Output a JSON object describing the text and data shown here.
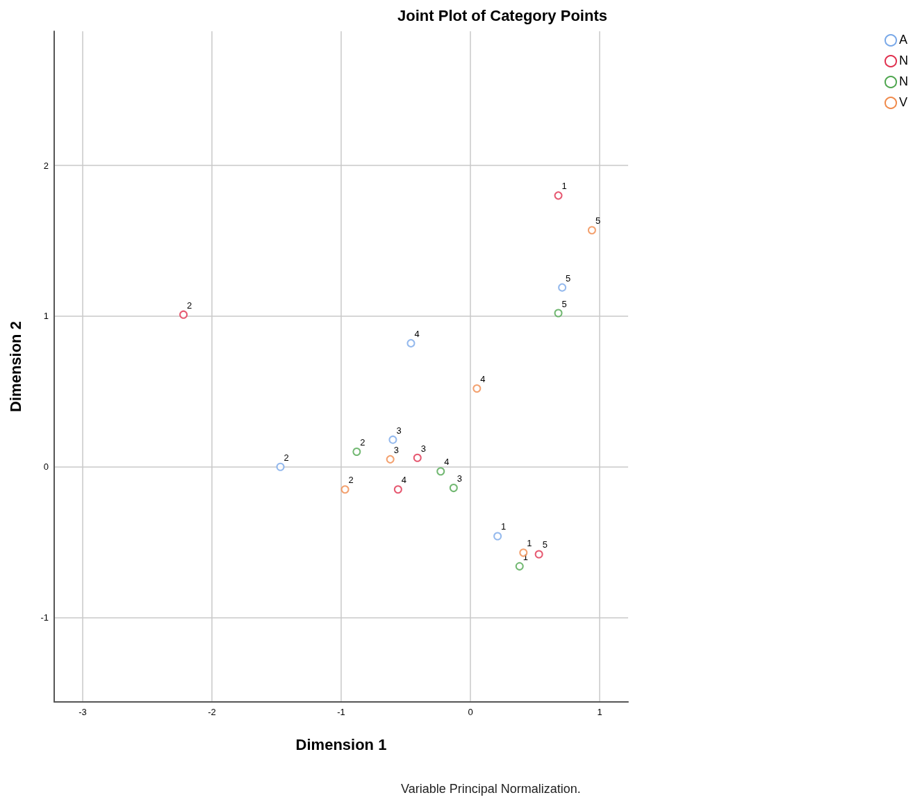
{
  "chart_data": {
    "type": "scatter",
    "title": "Joint Plot of Category Points",
    "xlabel": "Dimension 1",
    "ylabel": "Dimension 2",
    "annotations": [
      "Variable Principal Normalization.",
      {
        "text": "1",
        "x": 0.21,
        "y": -0.46
      },
      {
        "text": "2",
        "x": -1.47,
        "y": 0.0
      },
      {
        "text": "3",
        "x": -0.6,
        "y": 0.18
      },
      {
        "text": "4",
        "x": -0.46,
        "y": 0.82
      },
      {
        "text": "5",
        "x": 0.71,
        "y": 1.19
      },
      {
        "text": "1",
        "x": 0.68,
        "y": 1.8
      },
      {
        "text": "2",
        "x": -2.22,
        "y": 1.01
      },
      {
        "text": "3",
        "x": -0.41,
        "y": 0.06
      },
      {
        "text": "4",
        "x": -0.56,
        "y": -0.15
      },
      {
        "text": "5",
        "x": 0.53,
        "y": -0.58
      },
      {
        "text": "1",
        "x": 0.38,
        "y": -0.66
      },
      {
        "text": "2",
        "x": -0.88,
        "y": 0.1
      },
      {
        "text": "3",
        "x": -0.13,
        "y": -0.14
      },
      {
        "text": "4",
        "x": -0.23,
        "y": -0.03
      },
      {
        "text": "5",
        "x": 0.68,
        "y": 1.02
      },
      {
        "text": "1",
        "x": 0.41,
        "y": -0.57
      },
      {
        "text": "2",
        "x": -0.97,
        "y": -0.15
      },
      {
        "text": "3",
        "x": -0.62,
        "y": 0.05
      },
      {
        "text": "4",
        "x": 0.05,
        "y": 0.52
      },
      {
        "text": "5",
        "x": 0.94,
        "y": 1.57
      }
    ],
    "xlim": [
      -3.22,
      1.22
    ],
    "ylim": [
      -1.56,
      2.89
    ],
    "xticks": [
      -3,
      -2,
      -1,
      0,
      1
    ],
    "yticks": [
      -1,
      0,
      1,
      2
    ],
    "grid": true,
    "legend": "top right",
    "marker": "circle",
    "series": [
      {
        "name": "A",
        "color": "#79a8e8",
        "x": [
          0.21,
          -1.47,
          -0.6,
          -0.46,
          0.71
        ],
        "values": [
          -0.46,
          0.0,
          0.18,
          0.82,
          1.19
        ]
      },
      {
        "name": "N",
        "color": "#e0304e",
        "x": [
          0.68,
          -2.22,
          -0.41,
          -0.56,
          0.53
        ],
        "values": [
          1.8,
          1.01,
          0.06,
          -0.15,
          -0.58
        ]
      },
      {
        "name": "N",
        "color": "#4fa64f",
        "x": [
          0.38,
          -0.88,
          -0.13,
          -0.23,
          0.68
        ],
        "values": [
          -0.66,
          0.1,
          -0.14,
          -0.03,
          1.02
        ]
      },
      {
        "name": "V",
        "color": "#f08a4b",
        "x": [
          0.41,
          -0.97,
          -0.62,
          0.05,
          0.94
        ],
        "values": [
          -0.57,
          -0.15,
          0.05,
          0.52,
          1.57
        ]
      }
    ]
  }
}
